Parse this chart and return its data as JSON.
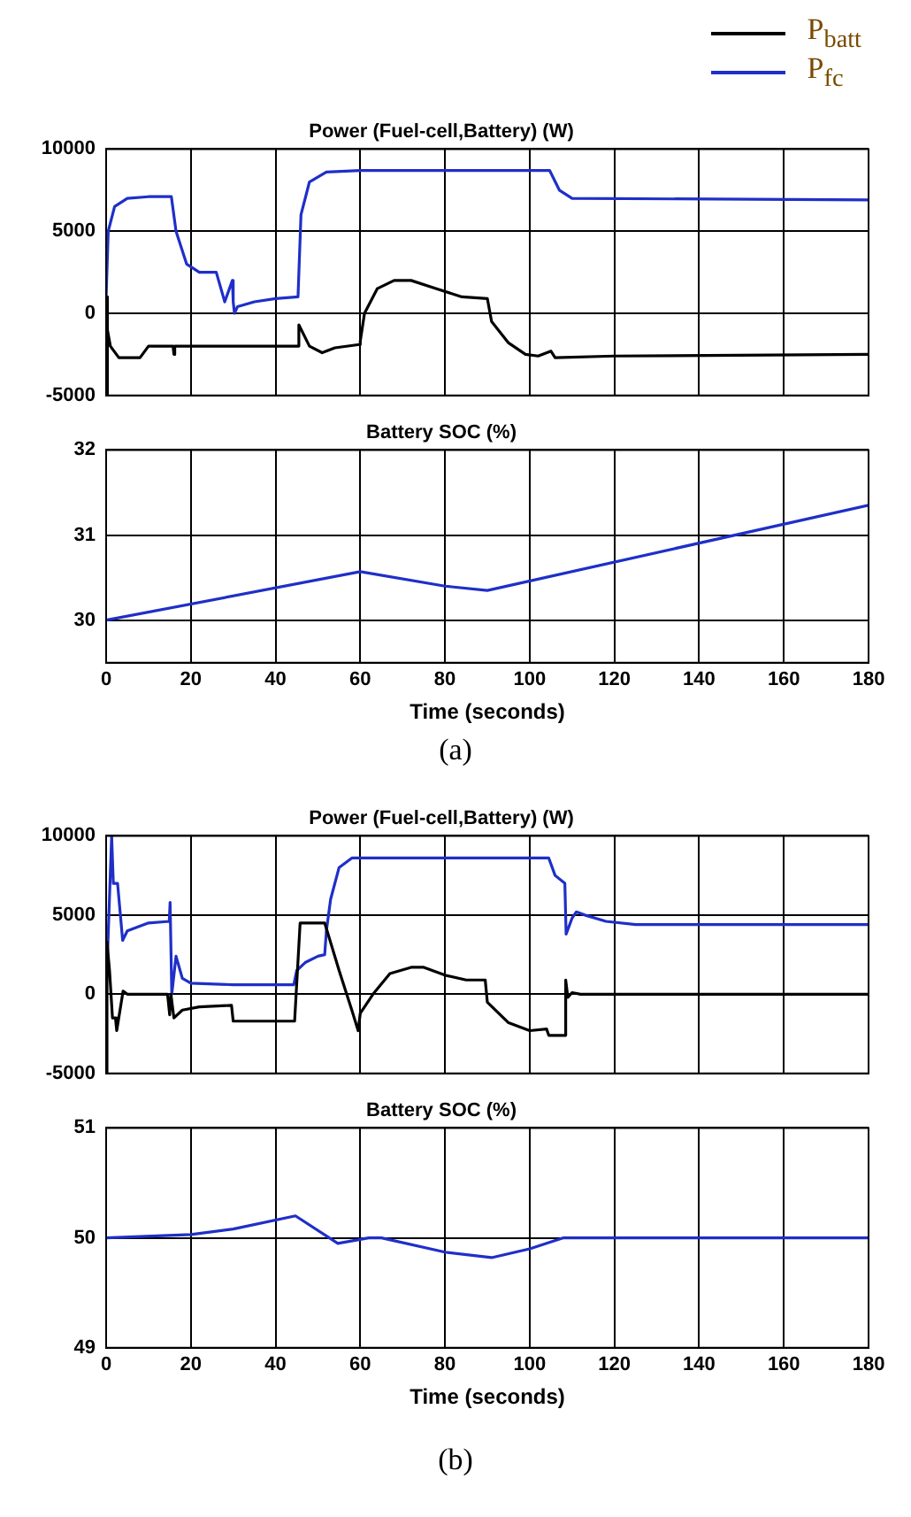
{
  "chart_data": [
    {
      "type": "line",
      "title": "Power (Fuel-cell,Battery) (W)",
      "legend": "top right",
      "tick_labels": "y",
      "grid": true,
      "xlim": [
        0,
        180
      ],
      "xticks": [
        0,
        20,
        40,
        60,
        80,
        100,
        120,
        140,
        160,
        180
      ],
      "ylim": [
        -5000,
        10000
      ],
      "yticks": [
        -5000,
        0,
        5000,
        10000
      ],
      "series": [
        {
          "name": "P$_{batt}$",
          "color": "#000000",
          "x": [
            0,
            0.2,
            0.4,
            1,
            3,
            8,
            10,
            15.8,
            16,
            16.2,
            30,
            45.3,
            45.5,
            48,
            51,
            54,
            59.8,
            60,
            61,
            64,
            68,
            72,
            78,
            84,
            90,
            91,
            95,
            99,
            102,
            105,
            106,
            120,
            180
          ],
          "values": [
            1000,
            -5000,
            -1000,
            -2000,
            -2700,
            -2700,
            -2000,
            -2000,
            -2500,
            -2000,
            -2000,
            -2000,
            -700,
            -2000,
            -2400,
            -2100,
            -1900,
            -1700,
            0,
            1500,
            2000,
            2000,
            1500,
            1000,
            900,
            -500,
            -1800,
            -2500,
            -2600,
            -2300,
            -2700,
            -2600,
            -2500
          ]
        },
        {
          "name": "P$_{fc}$",
          "color": "#1f2fc8",
          "x": [
            0,
            0.5,
            2,
            5,
            10,
            15.4,
            16.5,
            19,
            22,
            26,
            28,
            29.8,
            30,
            30.3,
            31,
            35,
            40,
            45.3,
            46,
            48,
            52,
            60,
            104.7,
            107,
            110,
            180
          ],
          "values": [
            1000,
            5000,
            6500,
            7000,
            7100,
            7100,
            5000,
            3000,
            2500,
            2500,
            700,
            2000,
            700,
            0,
            400,
            700,
            900,
            1000,
            6000,
            8000,
            8600,
            8700,
            8700,
            7500,
            7000,
            6900
          ]
        }
      ]
    },
    {
      "type": "line",
      "title": "Battery SOC (%)",
      "xlabel": "Time (seconds)",
      "annotations": [
        "(a)"
      ],
      "grid": true,
      "xlim": [
        0,
        180
      ],
      "xticks": [
        0,
        20,
        40,
        60,
        80,
        100,
        120,
        140,
        160,
        180
      ],
      "ylim": [
        29.5,
        32
      ],
      "yticks": [
        30,
        31,
        32
      ],
      "series": [
        {
          "color": "#1f2fc8",
          "x": [
            0,
            60,
            80,
            90,
            180
          ],
          "values": [
            30,
            30.57,
            30.4,
            30.35,
            31.35
          ]
        }
      ]
    },
    {
      "type": "line",
      "title": "Power (Fuel-cell,Battery) (W)",
      "tick_labels": "y",
      "grid": true,
      "xlim": [
        0,
        180
      ],
      "xticks": [
        0,
        20,
        40,
        60,
        80,
        100,
        120,
        140,
        160,
        180
      ],
      "ylim": [
        -5000,
        10000
      ],
      "yticks": [
        -5000,
        0,
        5000,
        10000
      ],
      "series": [
        {
          "color": "#000000",
          "x": [
            0,
            0.1,
            0.3,
            0.8,
            1.5,
            2.2,
            2.5,
            4,
            5,
            14.5,
            15,
            15.3,
            16,
            18,
            22,
            29.6,
            30,
            44.5,
            45.8,
            51.6,
            55,
            58,
            59.5,
            60,
            63,
            67,
            72,
            75,
            80,
            85,
            89.5,
            90,
            95,
            100,
            104,
            104.5,
            108.3,
            108.5,
            109,
            110,
            112,
            180
          ],
          "values": [
            3300,
            -5000,
            3300,
            1500,
            -1500,
            -1500,
            -2300,
            200,
            0,
            0,
            -1300,
            0,
            -1500,
            -1000,
            -800,
            -700,
            -1700,
            -1700,
            4500,
            4500,
            1500,
            -1000,
            -2300,
            -1200,
            0,
            1300,
            1700,
            1700,
            1200,
            900,
            900,
            -500,
            -1800,
            -2300,
            -2200,
            -2600,
            -2600,
            900,
            -200,
            100,
            0,
            0
          ]
        },
        {
          "color": "#1f2fc8",
          "x": [
            0,
            1.3,
            1.7,
            2.7,
            3.9,
            5,
            10,
            14.9,
            15.1,
            15.5,
            16.5,
            18,
            20,
            30,
            44.3,
            45,
            47,
            50,
            51.6,
            52,
            53,
            55,
            58,
            104.5,
            106,
            108.3,
            108.6,
            110,
            111,
            113,
            118,
            125,
            180
          ],
          "values": [
            0,
            10000,
            7000,
            7000,
            3400,
            4000,
            4500,
            4600,
            5800,
            0,
            2400,
            1000,
            700,
            600,
            600,
            1500,
            2000,
            2400,
            2500,
            4000,
            6000,
            8000,
            8600,
            8600,
            7500,
            7000,
            3800,
            4800,
            5200,
            5000,
            4600,
            4400,
            4400
          ]
        }
      ]
    },
    {
      "type": "line",
      "title": "Battery SOC (%)",
      "xlabel": "Time (seconds)",
      "annotations": [
        "(b)"
      ],
      "grid": true,
      "xlim": [
        0,
        180
      ],
      "xticks": [
        0,
        20,
        40,
        60,
        80,
        100,
        120,
        140,
        160,
        180
      ],
      "ylim": [
        49,
        51
      ],
      "yticks": [
        49,
        50,
        51
      ],
      "series": [
        {
          "color": "#1f2fc8",
          "x": [
            0,
            20,
            30,
            44.7,
            54.7,
            62,
            65,
            80,
            91,
            100,
            108,
            180
          ],
          "values": [
            50,
            50.03,
            50.08,
            50.2,
            49.95,
            50,
            50,
            49.87,
            49.82,
            49.9,
            50,
            50
          ]
        }
      ]
    }
  ]
}
